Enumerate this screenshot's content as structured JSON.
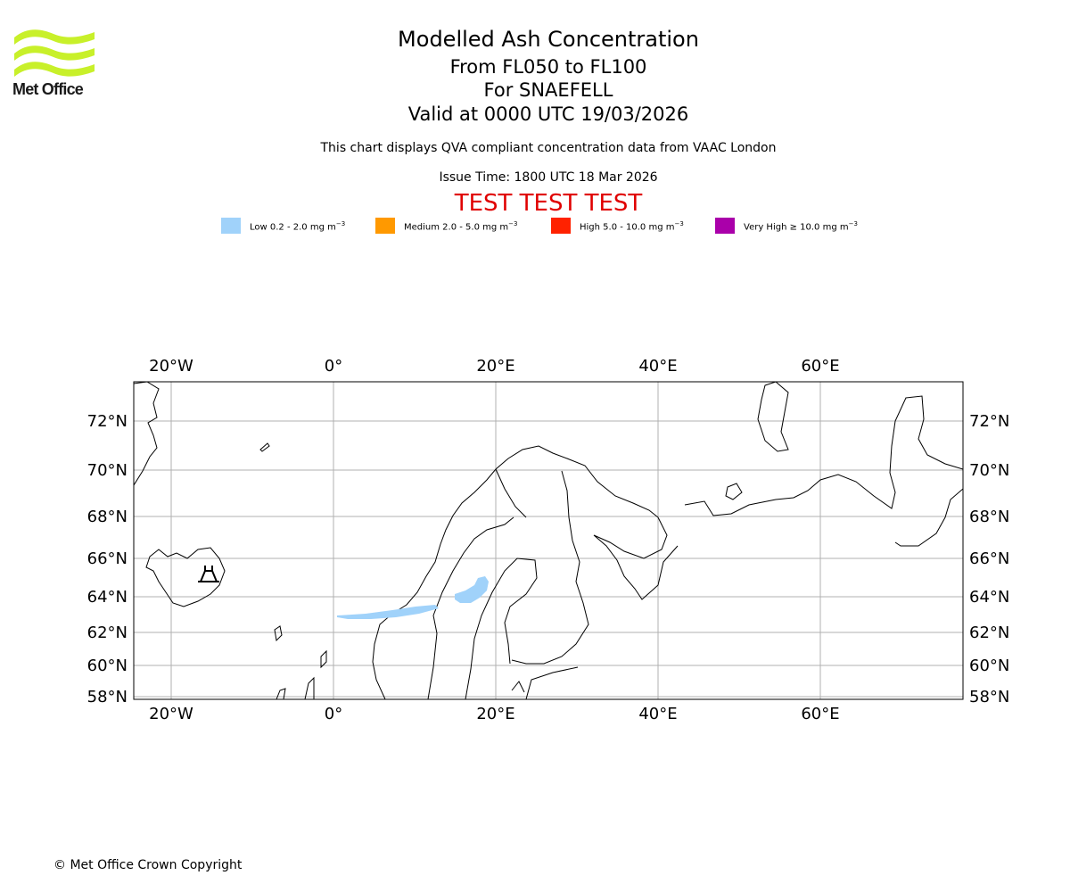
{
  "header": {
    "logo_text": "Met Office",
    "title": "Modelled Ash Concentration",
    "levels": "From FL050 to FL100",
    "volcano": "For SNAEFELL",
    "valid": "Valid at 0000 UTC 19/03/2026",
    "subtitle": "This chart displays QVA compliant concentration data from VAAC London",
    "issue_time": "Issue Time: 1800 UTC 18 Mar 2026",
    "test_banner": "TEST TEST TEST"
  },
  "legend": [
    {
      "label": "Low 0.2 - 2.0 mg m",
      "exponent": "−3",
      "color": "#a0d2fa"
    },
    {
      "label": "Medium 2.0 - 5.0 mg m",
      "exponent": "−3",
      "color": "#ff9900"
    },
    {
      "label": "High 5.0 - 10.0 mg m",
      "exponent": "−3",
      "color": "#ff2200"
    },
    {
      "label": "Very High  ≥  10.0 mg m",
      "exponent": "−3",
      "color": "#aa00aa"
    }
  ],
  "map": {
    "lon_labels": [
      "20°W",
      "0°",
      "20°E",
      "40°E",
      "60°E"
    ],
    "lat_labels": [
      "72°N",
      "70°N",
      "68°N",
      "66°N",
      "64°N",
      "62°N",
      "60°N",
      "58°N"
    ],
    "extent": {
      "lon_min": -24.6,
      "lon_max": 77.5,
      "lat_min": 58.0,
      "lat_max": 73.8
    },
    "volcano_name": "SNAEFELL",
    "ash_color": "#a0d2fa"
  },
  "footer": {
    "copyright": "© Met Office Crown Copyright"
  }
}
